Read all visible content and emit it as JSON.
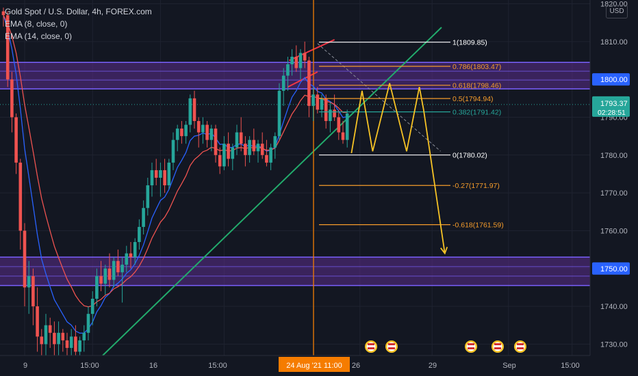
{
  "header": {
    "symbol_line": "Gold Spot / U.S. Dollar, 4h, FOREX.com",
    "indicators": [
      "EMA (8, close, 0)",
      "EMA (14, close, 0)"
    ]
  },
  "currency": "USD",
  "colors": {
    "background": "#131722",
    "up_candle": "#26a69a",
    "down_candle": "#ef5350",
    "ema8": "#2962ff",
    "ema14": "#ef5350",
    "zone_fill": "#5b2d8c",
    "zone_border": "#7b61ff",
    "trendline": "#22ab6c",
    "projection": "#f7c325",
    "fib_orange": "#f59c2b",
    "fib_white": "#ffffff",
    "vertical_marker": "#f57c00"
  },
  "chart_data": {
    "type": "candlestick",
    "title": "Gold Spot / U.S. Dollar, 4h, FOREX.com",
    "y_axis": {
      "ticks": [
        "1820.00",
        "1810.00",
        "1800.00",
        "1790.00",
        "1780.00",
        "1770.00",
        "1760.00",
        "1750.00",
        "1740.00",
        "1730.00"
      ],
      "range": [
        1727,
        1821
      ]
    },
    "x_axis": {
      "ticks": [
        "9",
        "15:00",
        "16",
        "15:00",
        "24 Aug '21  11:00",
        "26",
        "29",
        "Sep",
        "15:00"
      ]
    },
    "price_badges": [
      {
        "label": "1800.00",
        "value": 1800.0,
        "style": "zone"
      },
      {
        "label": "1793.37",
        "sub": "02:28:51",
        "value": 1793.37,
        "style": "last"
      },
      {
        "label": "1750.00",
        "value": 1750.0,
        "style": "zone"
      }
    ],
    "ohlc": [
      [
        1818,
        1819,
        1814,
        1817
      ],
      [
        1817,
        1818,
        1798,
        1800
      ],
      [
        1800,
        1802,
        1786,
        1790
      ],
      [
        1790,
        1791,
        1775,
        1778
      ],
      [
        1778,
        1779,
        1755,
        1760
      ],
      [
        1760,
        1762,
        1740,
        1745
      ],
      [
        1745,
        1752,
        1738,
        1748
      ],
      [
        1748,
        1750,
        1735,
        1740
      ],
      [
        1740,
        1745,
        1728,
        1732
      ],
      [
        1732,
        1734,
        1722,
        1730
      ],
      [
        1730,
        1738,
        1727,
        1735
      ],
      [
        1735,
        1737,
        1729,
        1733
      ],
      [
        1733,
        1736,
        1727,
        1730
      ],
      [
        1730,
        1736,
        1727,
        1733
      ],
      [
        1733,
        1734,
        1728,
        1731
      ],
      [
        1731,
        1733,
        1727,
        1729
      ],
      [
        1729,
        1734,
        1726,
        1732
      ],
      [
        1732,
        1735,
        1727,
        1728
      ],
      [
        1728,
        1732,
        1725,
        1731
      ],
      [
        1731,
        1735,
        1728,
        1733
      ],
      [
        1733,
        1740,
        1731,
        1738
      ],
      [
        1738,
        1744,
        1735,
        1742
      ],
      [
        1742,
        1750,
        1740,
        1748
      ],
      [
        1748,
        1752,
        1744,
        1746
      ],
      [
        1746,
        1751,
        1743,
        1750
      ],
      [
        1750,
        1754,
        1745,
        1747
      ],
      [
        1747,
        1753,
        1745,
        1752
      ],
      [
        1752,
        1755,
        1748,
        1749
      ],
      [
        1749,
        1753,
        1741,
        1751
      ],
      [
        1751,
        1756,
        1749,
        1754
      ],
      [
        1754,
        1757,
        1750,
        1753
      ],
      [
        1753,
        1758,
        1751,
        1757
      ],
      [
        1757,
        1763,
        1755,
        1761
      ],
      [
        1761,
        1768,
        1759,
        1766
      ],
      [
        1766,
        1774,
        1764,
        1772
      ],
      [
        1772,
        1778,
        1769,
        1776
      ],
      [
        1776,
        1779,
        1772,
        1774
      ],
      [
        1774,
        1778,
        1769,
        1776
      ],
      [
        1776,
        1779,
        1770,
        1772
      ],
      [
        1772,
        1779,
        1771,
        1778
      ],
      [
        1778,
        1786,
        1776,
        1784
      ],
      [
        1784,
        1788,
        1781,
        1787
      ],
      [
        1787,
        1789,
        1783,
        1785
      ],
      [
        1785,
        1789,
        1783,
        1788
      ],
      [
        1788,
        1796,
        1786,
        1795
      ],
      [
        1795,
        1797,
        1787,
        1789
      ],
      [
        1789,
        1790,
        1782,
        1786
      ],
      [
        1786,
        1790,
        1783,
        1788
      ],
      [
        1788,
        1789,
        1782,
        1784
      ],
      [
        1784,
        1788,
        1781,
        1787
      ],
      [
        1787,
        1788,
        1778,
        1780
      ],
      [
        1780,
        1782,
        1775,
        1777
      ],
      [
        1777,
        1785,
        1776,
        1783
      ],
      [
        1783,
        1786,
        1777,
        1779
      ],
      [
        1779,
        1783,
        1776,
        1782
      ],
      [
        1782,
        1788,
        1780,
        1786
      ],
      [
        1786,
        1790,
        1781,
        1783
      ],
      [
        1783,
        1785,
        1777,
        1780
      ],
      [
        1780,
        1785,
        1778,
        1784
      ],
      [
        1784,
        1787,
        1780,
        1781
      ],
      [
        1781,
        1784,
        1778,
        1783
      ],
      [
        1783,
        1786,
        1779,
        1780
      ],
      [
        1780,
        1784,
        1777,
        1778
      ],
      [
        1778,
        1783,
        1776,
        1782
      ],
      [
        1782,
        1786,
        1779,
        1785
      ],
      [
        1785,
        1799,
        1784,
        1797
      ],
      [
        1797,
        1803,
        1793,
        1801
      ],
      [
        1801,
        1806,
        1797,
        1804
      ],
      [
        1804,
        1808,
        1801,
        1806
      ],
      [
        1806,
        1809,
        1802,
        1803
      ],
      [
        1803,
        1808,
        1800,
        1807
      ],
      [
        1807,
        1810,
        1803,
        1805
      ],
      [
        1805,
        1806,
        1790,
        1793
      ],
      [
        1793,
        1798,
        1789,
        1796
      ],
      [
        1796,
        1798,
        1791,
        1792
      ],
      [
        1792,
        1796,
        1790,
        1795
      ],
      [
        1795,
        1796,
        1787,
        1789
      ],
      [
        1789,
        1794,
        1786,
        1792
      ],
      [
        1792,
        1796,
        1789,
        1790
      ],
      [
        1790,
        1792,
        1784,
        1786
      ],
      [
        1786,
        1789,
        1783,
        1784
      ],
      [
        1784,
        1792,
        1782,
        1791
      ]
    ],
    "ema8_label": "EMA (8, close, 0)",
    "ema14_label": "EMA (14, close, 0)",
    "zones": [
      {
        "top": 1804.5,
        "bottom": 1797.5
      },
      {
        "top": 1753.0,
        "bottom": 1745.5
      }
    ],
    "fibonacci": [
      {
        "label": "1(1809.85)",
        "value": 1809.85,
        "color": "white"
      },
      {
        "label": "0.786(1803.47)",
        "value": 1803.47,
        "color": "orange"
      },
      {
        "label": "0.618(1798.46)",
        "value": 1798.46,
        "color": "orange"
      },
      {
        "label": "0.5(1794.94)",
        "value": 1794.94,
        "color": "orange"
      },
      {
        "label": "0.382(1791.42)",
        "value": 1791.42,
        "color": "green"
      },
      {
        "label": "0(1780.02)",
        "value": 1780.02,
        "color": "white"
      },
      {
        "label": "-0.27(1771.97)",
        "value": 1771.97,
        "color": "orange"
      },
      {
        "label": "-0.618(1761.59)",
        "value": 1761.59,
        "color": "orange"
      }
    ],
    "projection_path": [
      {
        "bar": 82,
        "price": 1780.5
      },
      {
        "bar": 84.5,
        "price": 1797
      },
      {
        "bar": 87,
        "price": 1781
      },
      {
        "bar": 91,
        "price": 1799
      },
      {
        "bar": 95,
        "price": 1781
      },
      {
        "bar": 98,
        "price": 1798
      },
      {
        "bar": 99,
        "price": 1792
      },
      {
        "bar": 104,
        "price": 1754
      }
    ]
  }
}
